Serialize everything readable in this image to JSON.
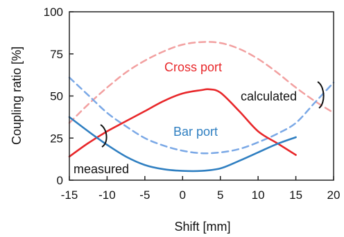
{
  "chart_data": {
    "type": "line",
    "xlabel": "Shift [mm]",
    "ylabel": "Coupling ratio [%]",
    "xlim": [
      -15,
      20
    ],
    "ylim": [
      0,
      100
    ],
    "xticks": [
      -15,
      -10,
      -5,
      0,
      5,
      10,
      15,
      20
    ],
    "yticks": [
      0,
      25,
      50,
      75,
      100
    ],
    "grid": false,
    "legend": "none",
    "annotations": [
      {
        "text": "Cross port",
        "color": "#e8272a"
      },
      {
        "text": "Bar port",
        "color": "#2f7fc1"
      },
      {
        "text": "calculated",
        "color": "#111111"
      },
      {
        "text": "measured",
        "color": "#111111"
      }
    ],
    "series": [
      {
        "port": "cross",
        "kind": "calculated",
        "color": "#f2a0a0",
        "dashed": true,
        "x": [
          -15,
          -12.5,
          -10,
          -7.5,
          -5,
          -2.5,
          0,
          2.5,
          5,
          7.5,
          10,
          12.5,
          15,
          17.5,
          20
        ],
        "y": [
          34,
          45,
          55,
          64,
          71,
          76.5,
          80.5,
          82,
          81.5,
          78,
          72,
          64,
          55,
          47,
          40
        ]
      },
      {
        "port": "bar",
        "kind": "calculated",
        "color": "#7aa8e6",
        "dashed": true,
        "x": [
          -15,
          -12.5,
          -10,
          -7.5,
          -5,
          -2.5,
          0,
          2.5,
          5,
          7.5,
          10,
          12.5,
          15,
          17.5,
          20
        ],
        "y": [
          61,
          50.5,
          40,
          32,
          25,
          20.5,
          17.5,
          16,
          16.5,
          18.5,
          22.5,
          27.5,
          34,
          46,
          58
        ]
      },
      {
        "port": "cross",
        "kind": "measured",
        "color": "#e8272a",
        "dashed": false,
        "x": [
          -15,
          -12.5,
          -10,
          -7.5,
          -5,
          -2.5,
          0,
          2.5,
          3.5,
          5,
          7.5,
          10,
          12.5,
          15
        ],
        "y": [
          14,
          22,
          29,
          35,
          41,
          47,
          51.5,
          53.5,
          54,
          52,
          41,
          29,
          22,
          15
        ]
      },
      {
        "port": "bar",
        "kind": "measured",
        "color": "#2f7fc1",
        "dashed": false,
        "x": [
          -15,
          -12.5,
          -10,
          -7.5,
          -5,
          -2.5,
          0,
          2.5,
          5,
          7.5,
          10,
          12.5,
          15
        ],
        "y": [
          37.5,
          29,
          21,
          14,
          9,
          6.5,
          5.5,
          5.5,
          7,
          11.5,
          16.5,
          21.5,
          25.5
        ]
      }
    ]
  }
}
